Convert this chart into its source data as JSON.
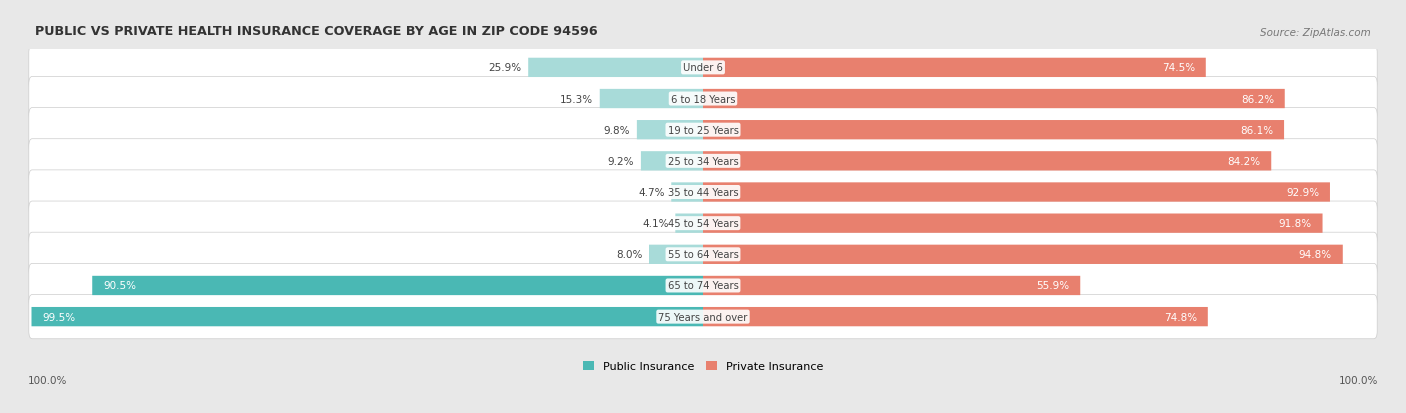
{
  "title": "PUBLIC VS PRIVATE HEALTH INSURANCE COVERAGE BY AGE IN ZIP CODE 94596",
  "source": "Source: ZipAtlas.com",
  "categories": [
    "Under 6",
    "6 to 18 Years",
    "19 to 25 Years",
    "25 to 34 Years",
    "35 to 44 Years",
    "45 to 54 Years",
    "55 to 64 Years",
    "65 to 74 Years",
    "75 Years and over"
  ],
  "public_values": [
    25.9,
    15.3,
    9.8,
    9.2,
    4.7,
    4.1,
    8.0,
    90.5,
    99.5
  ],
  "private_values": [
    74.5,
    86.2,
    86.1,
    84.2,
    92.9,
    91.8,
    94.8,
    55.9,
    74.8
  ],
  "public_color_strong": "#4ab8b4",
  "public_color_light": "#a8dbd9",
  "private_color_strong": "#e8806e",
  "private_color_light": "#f2c4ba",
  "row_bg_color": "#efefef",
  "row_inner_color": "#fafafa",
  "fig_bg_color": "#e8e8e8",
  "title_color": "#333333",
  "label_dark": "#444444",
  "label_white": "#ffffff",
  "legend_public": "Public Insurance",
  "legend_private": "Private Insurance",
  "x_left_label": "100.0%",
  "x_right_label": "100.0%"
}
